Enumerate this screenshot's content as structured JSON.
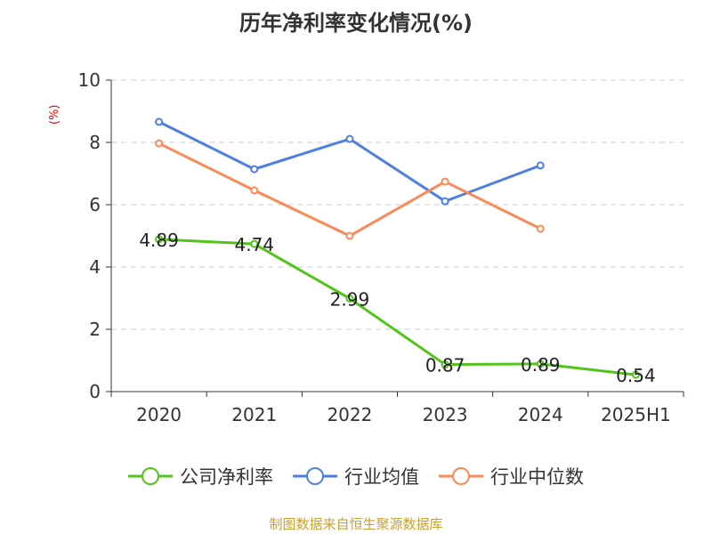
{
  "chart_data": {
    "type": "line",
    "title": "历年净利率变化情况(%)",
    "ylabel": "(%)",
    "categories": [
      "2020",
      "2021",
      "2022",
      "2023",
      "2024",
      "2025H1"
    ],
    "ylim": [
      0,
      10
    ],
    "yticks": [
      0,
      2,
      4,
      6,
      8,
      10
    ],
    "grid": true,
    "legend_position": "bottom",
    "series": [
      {
        "name": "公司净利率",
        "color": "#52c41a",
        "values": [
          4.89,
          4.74,
          2.99,
          0.87,
          0.89,
          0.54
        ],
        "labels": [
          "4.89",
          "4.74",
          "2.99",
          "0.87",
          "0.89",
          "0.54"
        ]
      },
      {
        "name": "行业均值",
        "color": "#4e80e0",
        "values": [
          8.66,
          7.14,
          8.11,
          6.11,
          7.26,
          null
        ]
      },
      {
        "name": "行业中位数",
        "color": "#fc8a58",
        "values": [
          7.97,
          6.46,
          5.0,
          6.74,
          5.23,
          null
        ]
      }
    ]
  },
  "source": "制图数据来自恒生聚源数据库"
}
